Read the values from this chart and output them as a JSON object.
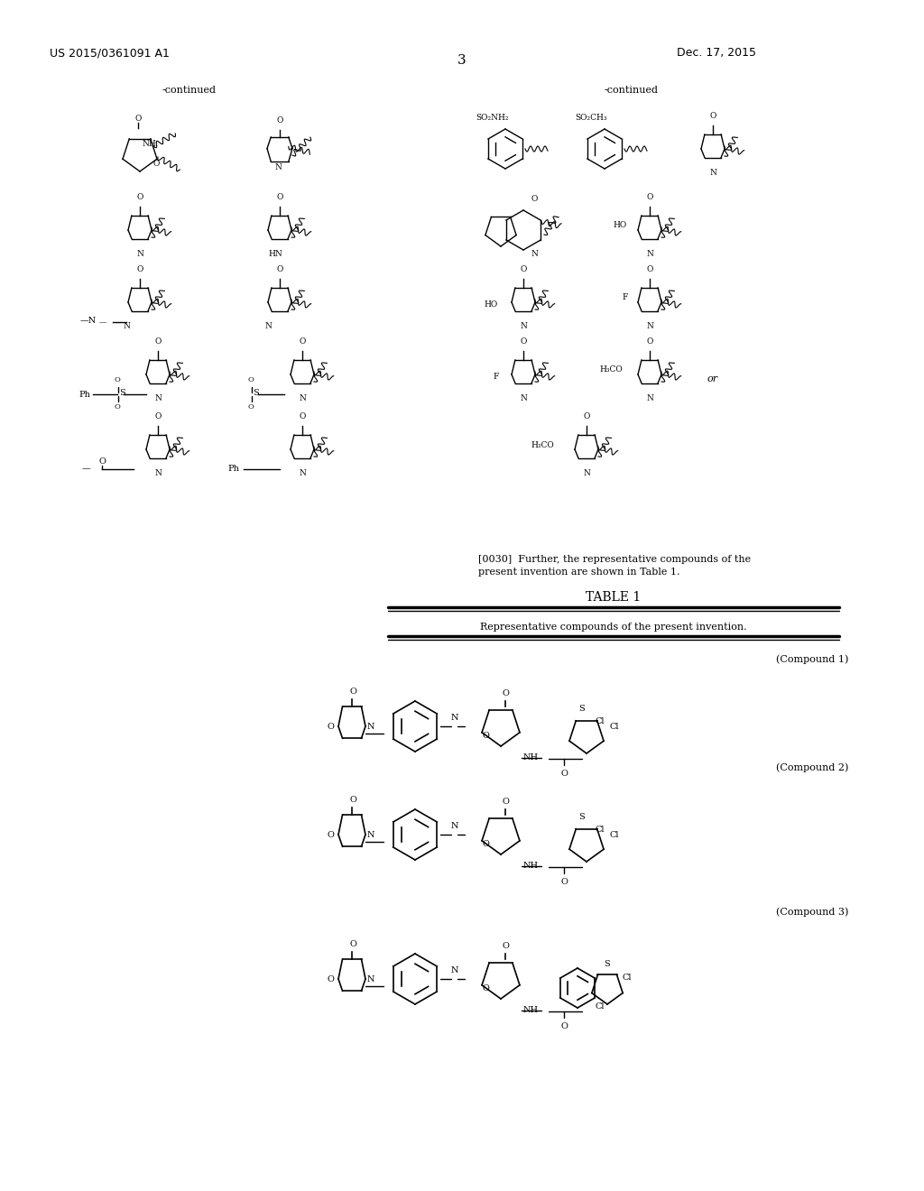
{
  "background_color": "#ffffff",
  "page_number": "3",
  "header_left": "US 2015/0361091 A1",
  "header_right": "Dec. 17, 2015",
  "continued_left": "-continued",
  "continued_right": "-continued",
  "table_title": "TABLE 1",
  "table_subtitle": "Representative compounds of the present invention.",
  "paragraph_text": "[0030] Further, the representative compounds of the present invention are shown in Table 1.",
  "compound1_label": "(Compound 1)",
  "compound2_label": "(Compound 2)",
  "compound3_label": "(Compound 3)",
  "font_size_header": 9,
  "font_size_body": 8,
  "font_size_page": 10
}
